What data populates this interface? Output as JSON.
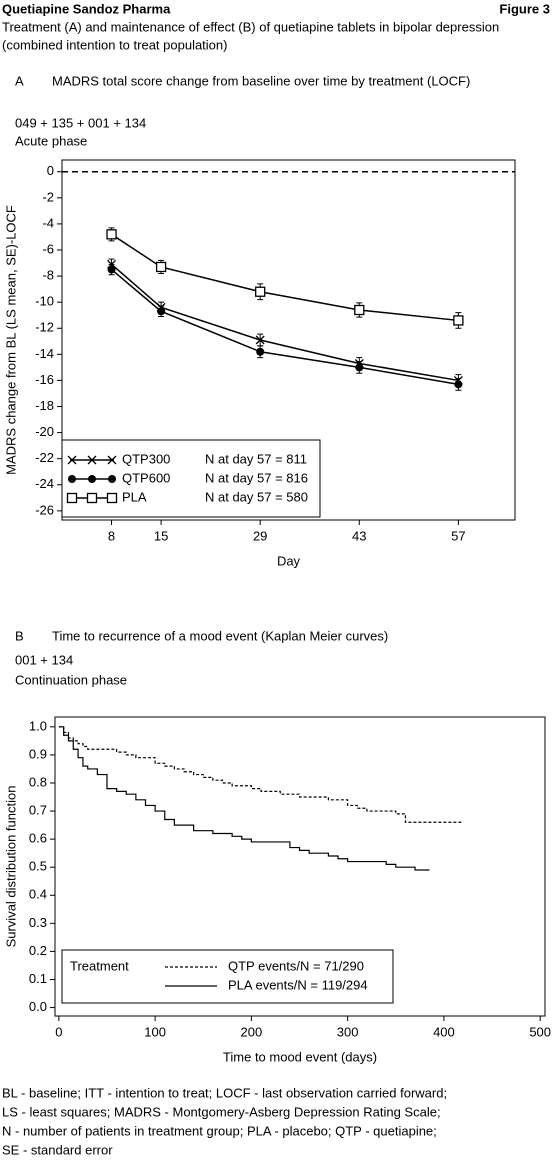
{
  "header": {
    "company": "Quetiapine Sandoz Pharma",
    "figure": "Figure 3",
    "subtitle_lines": [
      "Treatment (A) and maintenance of effect (B) of quetiapine tablets in bipolar depression",
      "(combined intention to treat population)"
    ]
  },
  "chart_data": [
    {
      "type": "line",
      "panel": "A",
      "heading": "MADRS total score change from baseline over time by treatment (LOCF)",
      "codes": "049 + 135 + 001 + 134",
      "phase": "Acute phase",
      "x_label": "Day",
      "y_label": "MADRS change from BL (LS mean, SE)-LOCF",
      "x": [
        8,
        15,
        29,
        43,
        57
      ],
      "xlim": [
        1,
        65
      ],
      "xticks": [
        8,
        15,
        29,
        43,
        57
      ],
      "ylim": [
        -26.7,
        0.9
      ],
      "yticks": [
        0,
        -2,
        -4,
        -6,
        -8,
        -10,
        -12,
        -14,
        -16,
        -18,
        -20,
        -22,
        -24,
        -26
      ],
      "reference_line": 0,
      "legend": "lower left",
      "series": [
        {
          "name": "QTP300",
          "n_label": "N at day 57 = 811",
          "color": "#000000",
          "marker": "x",
          "values": [
            -7.1,
            -10.4,
            -12.9,
            -14.7,
            -16.0
          ],
          "errors": [
            0.4,
            0.4,
            0.45,
            0.45,
            0.45
          ]
        },
        {
          "name": "QTP600",
          "n_label": "N at day 57 = 816",
          "color": "#000000",
          "marker": "circle",
          "values": [
            -7.5,
            -10.7,
            -13.8,
            -15.0,
            -16.3
          ],
          "errors": [
            0.4,
            0.4,
            0.45,
            0.45,
            0.45
          ]
        },
        {
          "name": "PLA",
          "n_label": "N at day 57 = 580",
          "color": "#000000",
          "marker": "square",
          "values": [
            -4.8,
            -7.3,
            -9.2,
            -10.6,
            -11.4
          ],
          "errors": [
            0.5,
            0.5,
            0.6,
            0.55,
            0.6
          ]
        }
      ]
    },
    {
      "type": "step",
      "panel": "B",
      "heading": "Time to recurrence of a mood event (Kaplan Meier curves)",
      "codes": "001 + 134",
      "phase": "Continuation phase",
      "x_label": "Time to mood event (days)",
      "y_label": "Survival distribution function",
      "xlim": [
        -4,
        505
      ],
      "xticks": [
        0,
        100,
        200,
        300,
        400,
        500
      ],
      "ylim": [
        -0.03,
        1.035
      ],
      "yticks": [
        {
          "value": 0,
          "label": "0.0"
        },
        0.1,
        0.2,
        0.3,
        0.4,
        0.5,
        0.6,
        0.7,
        0.8,
        0.9,
        {
          "value": 1,
          "label": "1.0"
        }
      ],
      "legend": "lower left",
      "legend_title": "Treatment",
      "series": [
        {
          "name": "QTP events/N = 71/290",
          "color": "#000000",
          "line_style": "dashed",
          "x": [
            0,
            5,
            10,
            15,
            20,
            25,
            30,
            60,
            70,
            80,
            100,
            110,
            120,
            130,
            140,
            150,
            160,
            170,
            180,
            200,
            210,
            230,
            250,
            280,
            300,
            310,
            320,
            350,
            360,
            420
          ],
          "values": [
            1.0,
            0.98,
            0.96,
            0.95,
            0.94,
            0.93,
            0.92,
            0.91,
            0.9,
            0.89,
            0.87,
            0.86,
            0.85,
            0.84,
            0.83,
            0.82,
            0.81,
            0.8,
            0.79,
            0.78,
            0.77,
            0.76,
            0.75,
            0.74,
            0.72,
            0.71,
            0.7,
            0.69,
            0.66,
            0.66
          ]
        },
        {
          "name": "PLA events/N = 119/294",
          "color": "#000000",
          "line_style": "solid",
          "x": [
            0,
            5,
            10,
            15,
            20,
            25,
            30,
            40,
            50,
            60,
            70,
            80,
            90,
            100,
            110,
            120,
            140,
            160,
            180,
            190,
            200,
            240,
            250,
            260,
            280,
            290,
            300,
            340,
            350,
            370,
            385
          ],
          "values": [
            1.0,
            0.97,
            0.95,
            0.92,
            0.89,
            0.86,
            0.85,
            0.83,
            0.78,
            0.77,
            0.76,
            0.74,
            0.72,
            0.7,
            0.67,
            0.65,
            0.63,
            0.62,
            0.61,
            0.6,
            0.59,
            0.57,
            0.56,
            0.55,
            0.54,
            0.53,
            0.52,
            0.51,
            0.5,
            0.49,
            0.49
          ]
        }
      ]
    }
  ],
  "footnotes": [
    "BL - baseline; ITT - intention to treat; LOCF - last observation carried forward;",
    "LS - least squares; MADRS - Montgomery-Asberg Depression Rating Scale;",
    "N - number of patients in treatment group; PLA - placebo; QTP - quetiapine;",
    "SE - standard error"
  ]
}
